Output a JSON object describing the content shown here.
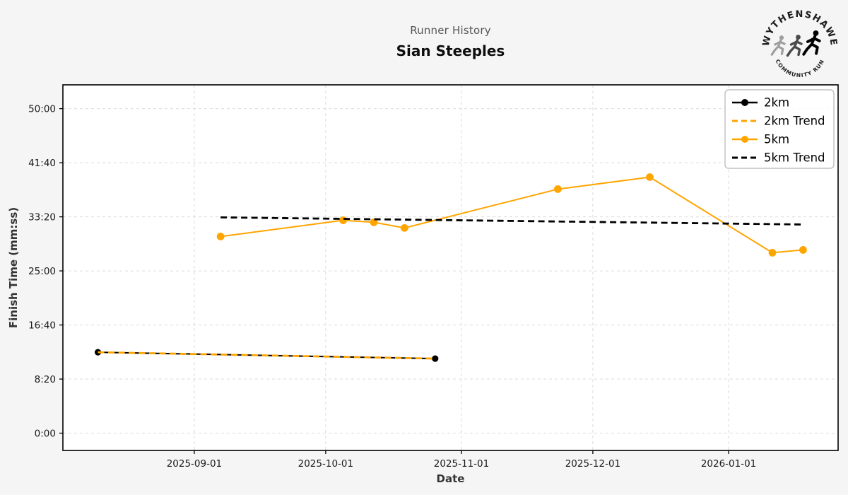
{
  "header": {
    "subtitle": "Runner History",
    "title": "Sian Steeples"
  },
  "logo": {
    "top_text": "WYTHENSHAWE",
    "bottom_text": "COMMUNITY RUN"
  },
  "colors": {
    "accent_orange": "#FFA500",
    "series_black": "#000000",
    "figure_background": "#F5F5F5",
    "plot_background": "#FFFFFF",
    "grid": "#DBDBDB",
    "subtitle_gray": "#555555"
  },
  "chart_data": {
    "type": "line",
    "title": "Runner History",
    "subtitle": "Sian Steeples",
    "xlabel": "Date",
    "ylabel": "Finish Time (mm:ss)",
    "grid": true,
    "legend_position": "top-right",
    "x_domain": [
      "2025-08-02",
      "2026-01-26"
    ],
    "y_domain_seconds": [
      -160,
      3220
    ],
    "x_ticks": [
      "2025-09-01",
      "2025-10-01",
      "2025-11-01",
      "2025-12-01",
      "2026-01-01"
    ],
    "y_ticks": [
      {
        "seconds": 0,
        "label": "0:00"
      },
      {
        "seconds": 500,
        "label": "8:20"
      },
      {
        "seconds": 1000,
        "label": "16:40"
      },
      {
        "seconds": 1500,
        "label": "25:00"
      },
      {
        "seconds": 2000,
        "label": "33:20"
      },
      {
        "seconds": 2500,
        "label": "41:40"
      },
      {
        "seconds": 3000,
        "label": "50:00"
      }
    ],
    "series": [
      {
        "name": "2km",
        "color": "#000000",
        "style": "solid",
        "marker": true,
        "points": [
          {
            "date": "2025-08-10",
            "time": "12:28",
            "seconds": 748
          },
          {
            "date": "2025-10-26",
            "time": "11:29",
            "seconds": 689
          }
        ]
      },
      {
        "name": "2km Trend",
        "color": "#FFA500",
        "style": "dashed",
        "marker": false,
        "points": [
          {
            "date": "2025-08-10",
            "time": "12:28",
            "seconds": 748
          },
          {
            "date": "2025-10-26",
            "time": "11:29",
            "seconds": 689
          }
        ]
      },
      {
        "name": "5km",
        "color": "#FFA500",
        "style": "solid",
        "marker": true,
        "points": [
          {
            "date": "2025-09-07",
            "time": "30:18",
            "seconds": 1818
          },
          {
            "date": "2025-10-05",
            "time": "32:48",
            "seconds": 1968
          },
          {
            "date": "2025-10-12",
            "time": "32:29",
            "seconds": 1949
          },
          {
            "date": "2025-10-19",
            "time": "31:37",
            "seconds": 1897
          },
          {
            "date": "2025-11-23",
            "time": "37:36",
            "seconds": 2256
          },
          {
            "date": "2025-12-14",
            "time": "39:27",
            "seconds": 2367
          },
          {
            "date": "2026-01-11",
            "time": "27:48",
            "seconds": 1668
          },
          {
            "date": "2026-01-18",
            "time": "28:14",
            "seconds": 1694
          }
        ]
      },
      {
        "name": "5km Trend",
        "color": "#000000",
        "style": "dashed",
        "marker": false,
        "points": [
          {
            "date": "2025-09-07",
            "time": "33:15",
            "seconds": 1995
          },
          {
            "date": "2026-01-18",
            "time": "32:09",
            "seconds": 1929
          }
        ]
      }
    ]
  }
}
